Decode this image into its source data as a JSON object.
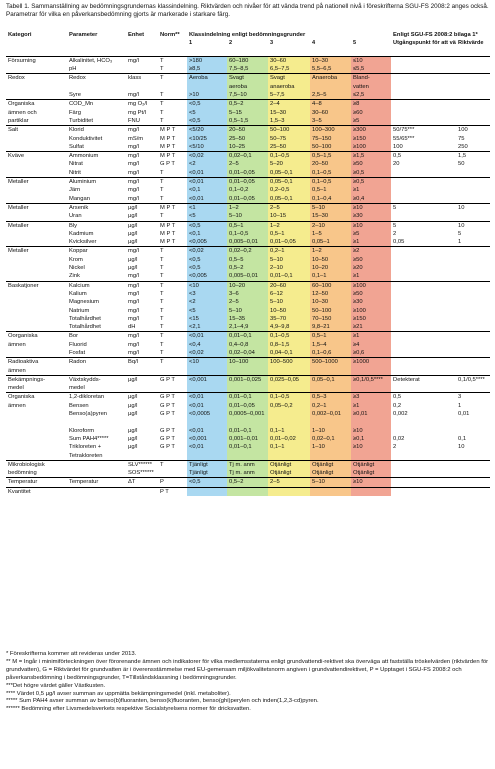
{
  "caption": "Tabell 1. Sammanställning av bedömningsgrundernas klassindelning. Riktvärden och nivåer för att vända trend på nationell nivå i föreskrifterna SGU-FS 2008:2 anges också. Parametrar för vilka en påverkansbedömning gjorts är markerade i starkare färg.",
  "headers": {
    "kategori": "Kategori",
    "parameter": "Parameter",
    "enhet": "Enhet",
    "norm": "Norm**",
    "klass_title": "Klassindelning enligt bedömningsgrunder",
    "klass_nums": [
      "1",
      "2",
      "3",
      "4",
      "5"
    ],
    "sgu_title": "Enligt SGU-FS 2008:2 bilaga 1*",
    "utg": "Utgångspunkt för att vända trend",
    "rikt": "Riktvärde"
  },
  "rows": [
    {
      "cat": "Försurning",
      "p": "Alkalinitet, HCO₃",
      "e": "mg/l",
      "n": "T",
      "c": [
        ">180",
        "60–180",
        "30–60",
        "10–30",
        "≤10"
      ],
      "u": "",
      "r": "",
      "g": true
    },
    {
      "cat": "",
      "p": "pH",
      "e": "",
      "n": "T",
      "c": [
        "≥8,5",
        "7,5–8,5",
        "6,5–7,5",
        "5,5–6,5",
        "≤5,5"
      ],
      "u": "",
      "r": ""
    },
    {
      "cat": "Redox",
      "p": "Redox",
      "e": "klass",
      "n": "T",
      "c": [
        "Aeroba",
        "Svagt",
        "Svagt",
        "Anaeroba",
        "Bland-"
      ],
      "u": "",
      "r": "",
      "g": true
    },
    {
      "cat": "",
      "p": "",
      "e": "",
      "n": "",
      "c": [
        "",
        "aeroba",
        "anaeroba",
        "",
        "vatten"
      ],
      "u": "",
      "r": ""
    },
    {
      "cat": "",
      "p": "Syre",
      "e": "mg/l",
      "n": "T",
      "c": [
        ">10",
        "7,5–10",
        "5–7,5",
        "2,5–5",
        "≤2,5"
      ],
      "u": "",
      "r": ""
    },
    {
      "cat": "Organiska",
      "p": "COD_Mn",
      "e": "mg O₂/l",
      "n": "T",
      "c": [
        "<0,5",
        "0,5–2",
        "2–4",
        "4–8",
        "≥8"
      ],
      "u": "",
      "r": "",
      "g": true
    },
    {
      "cat": "ämnen och",
      "p": "Färg",
      "e": "mg Pt/l",
      "n": "T",
      "c": [
        "<5",
        "5–15",
        "15–30",
        "30–60",
        "≥60"
      ],
      "u": "",
      "r": ""
    },
    {
      "cat": "partiklar",
      "p": "Turbiditet",
      "e": "FNU",
      "n": "T",
      "c": [
        "<0,5",
        "0,5–1,5",
        "1,5–3",
        "3–5",
        "≥5"
      ],
      "u": "",
      "r": ""
    },
    {
      "cat": "Salt",
      "p": "Klorid",
      "e": "mg/l",
      "n": "M P T",
      "c": [
        "<5/20",
        "20–50",
        "50–100",
        "100–300",
        "≥300"
      ],
      "u": "50/75***",
      "r": "100",
      "g": true
    },
    {
      "cat": "",
      "p": "Konduktivitet",
      "e": "mS/m",
      "n": "M P T",
      "c": [
        "<10/25",
        "25–50",
        "50–75",
        "75–150",
        "≥150"
      ],
      "u": "55/65***",
      "r": "75"
    },
    {
      "cat": "",
      "p": "Sulfat",
      "e": "mg/l",
      "n": "M P T",
      "c": [
        "<5/10",
        "10–25",
        "25–50",
        "50–100",
        "≥100"
      ],
      "u": "100",
      "r": "250"
    },
    {
      "cat": "Kväve",
      "p": "Ammonium",
      "e": "mg/l",
      "n": "M P T",
      "c": [
        "<0,02",
        "0,02–0,1",
        "0,1–0,5",
        "0,5–1,5",
        "≥1,5"
      ],
      "u": "0,5",
      "r": "1,5",
      "g": true
    },
    {
      "cat": "",
      "p": "Nitrat",
      "e": "mg/l",
      "n": "G P T",
      "c": [
        "<2",
        "2–5",
        "5–20",
        "20–50",
        "≥50"
      ],
      "u": "20",
      "r": "50"
    },
    {
      "cat": "",
      "p": "Nitrit",
      "e": "mg/l",
      "n": "T",
      "c": [
        "<0,01",
        "0,01–0,05",
        "0,05–0,1",
        "0,1–0,5",
        "≥0,5"
      ],
      "u": "",
      "r": ""
    },
    {
      "cat": "Metaller",
      "p": "Aluminium",
      "e": "mg/l",
      "n": "T",
      "c": [
        "<0,01",
        "0,01–0,05",
        "0,05–0,1",
        "0,1–0,5",
        "≥0,5"
      ],
      "u": "",
      "r": "",
      "g": true
    },
    {
      "cat": "",
      "p": "Järn",
      "e": "mg/l",
      "n": "T",
      "c": [
        "<0,1",
        "0,1–0,2",
        "0,2–0,5",
        "0,5–1",
        "≥1"
      ],
      "u": "",
      "r": ""
    },
    {
      "cat": "",
      "p": "Mangan",
      "e": "mg/l",
      "n": "T",
      "c": [
        "<0,01",
        "0,01–0,05",
        "0,05–0,1",
        "0,1–0,4",
        "≥0,4"
      ],
      "u": "",
      "r": ""
    },
    {
      "cat": "Metaller",
      "p": "Arsenik",
      "e": "µg/l",
      "n": "M P T",
      "c": [
        "<1",
        "1–2",
        "2–5",
        "5–10",
        "≥10"
      ],
      "u": "5",
      "r": "10",
      "g": true
    },
    {
      "cat": "",
      "p": "Uran",
      "e": "µg/l",
      "n": "T",
      "c": [
        "<5",
        "5–10",
        "10–15",
        "15–30",
        "≥30"
      ],
      "u": "",
      "r": ""
    },
    {
      "cat": "Metaller",
      "p": "Bly",
      "e": "µg/l",
      "n": "M P T",
      "c": [
        "<0,5",
        "0,5–1",
        "1–2",
        "2–10",
        "≥10"
      ],
      "u": "5",
      "r": "10",
      "g": true
    },
    {
      "cat": "",
      "p": "Kadmium",
      "e": "µg/l",
      "n": "M P T",
      "c": [
        "<0,1",
        "0,1–0,5",
        "0,5–1",
        "1–5",
        "≥5"
      ],
      "u": "2",
      "r": "5"
    },
    {
      "cat": "",
      "p": "Kvicksilver",
      "e": "µg/l",
      "n": "M P T",
      "c": [
        "<0,005",
        "0,005–0,01",
        "0,01–0,05",
        "0,05–1",
        "≥1"
      ],
      "u": "0,05",
      "r": "1"
    },
    {
      "cat": "Metaller",
      "p": "Koppar",
      "e": "mg/l",
      "n": "T",
      "c": [
        "<0,02",
        "0,02–0,2",
        "0,2–1",
        "1–2",
        "≥2"
      ],
      "u": "",
      "r": "",
      "g": true
    },
    {
      "cat": "",
      "p": "Krom",
      "e": "µg/l",
      "n": "T",
      "c": [
        "<0,5",
        "0,5–5",
        "5–10",
        "10–50",
        "≥50"
      ],
      "u": "",
      "r": ""
    },
    {
      "cat": "",
      "p": "Nickel",
      "e": "µg/l",
      "n": "T",
      "c": [
        "<0,5",
        "0,5–2",
        "2–10",
        "10–20",
        "≥20"
      ],
      "u": "",
      "r": ""
    },
    {
      "cat": "",
      "p": "Zink",
      "e": "mg/l",
      "n": "T",
      "c": [
        "<0,005",
        "0,005–0,01",
        "0,01–0,1",
        "0,1–1",
        "≥1"
      ],
      "u": "",
      "r": ""
    },
    {
      "cat": "Baskatjoner",
      "p": "Kalcium",
      "e": "mg/l",
      "n": "T",
      "c": [
        "<10",
        "10–20",
        "20–60",
        "60–100",
        "≥100"
      ],
      "u": "",
      "r": "",
      "g": true
    },
    {
      "cat": "",
      "p": "Kalium",
      "e": "mg/l",
      "n": "T",
      "c": [
        "<3",
        "3–6",
        "6–12",
        "12–50",
        "≥50"
      ],
      "u": "",
      "r": ""
    },
    {
      "cat": "",
      "p": "Magnesium",
      "e": "mg/l",
      "n": "T",
      "c": [
        "<2",
        "2–5",
        "5–10",
        "10–30",
        "≥30"
      ],
      "u": "",
      "r": ""
    },
    {
      "cat": "",
      "p": "Natrium",
      "e": "mg/l",
      "n": "T",
      "c": [
        "<5",
        "5–10",
        "10–50",
        "50–100",
        "≥100"
      ],
      "u": "",
      "r": ""
    },
    {
      "cat": "",
      "p": "Totalhårdhet",
      "e": "mg/l",
      "n": "T",
      "c": [
        "<15",
        "15–35",
        "35–70",
        "70–150",
        "≥150"
      ],
      "u": "",
      "r": ""
    },
    {
      "cat": "",
      "p": "Totalhårdhet",
      "e": "dH",
      "n": "T",
      "c": [
        "<2,1",
        "2,1–4,9",
        "4,9–9,8",
        "9,8–21",
        "≥21"
      ],
      "u": "",
      "r": ""
    },
    {
      "cat": "Oorganiska",
      "p": "Bor",
      "e": "mg/l",
      "n": "T",
      "c": [
        "<0,01",
        "0,01–0,1",
        "0,1–0,5",
        "0,5–1",
        "≥1"
      ],
      "u": "",
      "r": "",
      "g": true
    },
    {
      "cat": "ämnen",
      "p": "Fluorid",
      "e": "mg/l",
      "n": "T",
      "c": [
        "<0,4",
        "0,4–0,8",
        "0,8–1,5",
        "1,5–4",
        "≥4"
      ],
      "u": "",
      "r": ""
    },
    {
      "cat": "",
      "p": "Fosfat",
      "e": "mg/l",
      "n": "T",
      "c": [
        "<0,02",
        "0,02–0,04",
        "0,04–0,1",
        "0,1–0,6",
        "≥0,6"
      ],
      "u": "",
      "r": ""
    },
    {
      "cat": "Radioaktiva",
      "p": "Radon",
      "e": "Bq/l",
      "n": "T",
      "c": [
        "<10",
        "10–100",
        "100–500",
        "500–1000",
        "≥1000"
      ],
      "u": "",
      "r": "",
      "g": true
    },
    {
      "cat": "ämnen",
      "p": "",
      "e": "",
      "n": "",
      "c": [
        "",
        "",
        "",
        "",
        ""
      ],
      "u": "",
      "r": ""
    },
    {
      "cat": "Bekämpnings-",
      "p": "Växtskydds-",
      "e": "µg/l",
      "n": "G P T",
      "c": [
        "<0,001",
        "0,001–0,025",
        "0,025–0,05",
        "0,05–0,1",
        "≥0,1/0,5****"
      ],
      "u": "Detekterat",
      "r": "0,1/0,5****",
      "g": true
    },
    {
      "cat": "medel",
      "p": "medel",
      "e": "",
      "n": "",
      "c": [
        "",
        "",
        "",
        "",
        ""
      ],
      "u": "",
      "r": ""
    },
    {
      "cat": "Organiska",
      "p": "1,2-dikloretan",
      "e": "µg/l",
      "n": "G P T",
      "c": [
        "<0,01",
        "0,01–0,1",
        "0,1–0,5",
        "0,5–3",
        "≥3"
      ],
      "u": "0,5",
      "r": "3",
      "g": true
    },
    {
      "cat": "ämnen",
      "p": "Bensen",
      "e": "µg/l",
      "n": "G P T",
      "c": [
        "<0,01",
        "0,01–0,05",
        "0,05–0,2",
        "0,2–1",
        "≥1"
      ],
      "u": "0,2",
      "r": "1"
    },
    {
      "cat": "",
      "p": "Benso(a)pyren",
      "e": "µg/l",
      "n": "G P T",
      "c": [
        "<0,0005",
        "0,0005–0,001",
        "",
        "0,002–0,01",
        "≥0,01"
      ],
      "u": "0,002",
      "r": "0,01"
    },
    {
      "cat": "",
      "p": "",
      "e": "",
      "n": "",
      "c": [
        "",
        "",
        "",
        "",
        ""
      ],
      "u": "",
      "r": ""
    },
    {
      "cat": "",
      "p": "Kloroform",
      "e": "µg/l",
      "n": "G P T",
      "c": [
        "<0,01",
        "0,01–0,1",
        "0,1–1",
        "1–10",
        "≥10"
      ],
      "u": "",
      "r": ""
    },
    {
      "cat": "",
      "p": "Sum PAH4*****",
      "e": "µg/l",
      "n": "G P T",
      "c": [
        "<0,001",
        "0,001–0,01",
        "0,01–0,02",
        "0,02–0,1",
        "≥0,1"
      ],
      "u": "0,02",
      "r": "0,1"
    },
    {
      "cat": "",
      "p": "Trikloreten +",
      "e": "µg/l",
      "n": "G P T",
      "c": [
        "<0,01",
        "0,01–0,1",
        "0,1–1",
        "1–10",
        "≥10"
      ],
      "u": "2",
      "r": "10"
    },
    {
      "cat": "",
      "p": "Tetrakloreten",
      "e": "",
      "n": "",
      "c": [
        "",
        "",
        "",
        "",
        ""
      ],
      "u": "",
      "r": ""
    },
    {
      "cat": "Mikrobiologisk",
      "p": "",
      "e": "SLV******",
      "n": "T",
      "c": [
        "Tjänligt",
        "Tj m. anm",
        "Otjänligt",
        "Otjänligt",
        "Otjänligt"
      ],
      "u": "",
      "r": "",
      "g": true
    },
    {
      "cat": "bedömning",
      "p": "",
      "e": "SOS******",
      "n": "",
      "c": [
        "Tjänligt",
        "Tj m. anm",
        "Otjänligt",
        "Otjänligt",
        "Otjänligt"
      ],
      "u": "",
      "r": ""
    },
    {
      "cat": "Temperatur",
      "p": "Temperatur",
      "e": "ΔT",
      "n": "P",
      "c": [
        "<0,5",
        "0,5–2",
        "2–5",
        "5–10",
        "≥10"
      ],
      "u": "",
      "r": "",
      "g": true
    },
    {
      "cat": "Kvantitet",
      "p": "",
      "e": "",
      "n": "P T",
      "c": [
        "",
        "",
        "",
        "",
        ""
      ],
      "u": "",
      "r": "",
      "g": true
    }
  ],
  "footnotes": [
    "* Föreskrifterna kommer att revideras under 2013.",
    "** M = Ingår i minimiförteckningen över förorenande ämnen och indikatorer för vilka medlemsstaterna enligt grundvattendi-rektivet ska överväga att fastställa tröskelvärden (riktvärden för grundvatten), G = Riktvärdet för grundvatten är i överensstämmelse med EU-gemensam miljökvalitetsnorm angiven i grundvattendirektivet, P = Upptaget i SGU-FS 2008:2 och påverkansbedömning i bedömningsgrunder, T=Tillståndsklassning i bedömningsgrunder.",
    "***Det högre värdet gäller Västkusten.",
    "**** Värdet 0,5 µg/l avser summan av uppmätta bekämpningsmedel (inkl. metaboliter).",
    "***** Sum PAH4 avser summan av benso(b)fluoranten, benso(k)fluoranten, benso(ghi)perylen och inden(1,2,3-cd)pyren.",
    "****** Bedömning efter Livsmedelsverkets respektive Socialstyrelsens normer för dricksvatten."
  ]
}
